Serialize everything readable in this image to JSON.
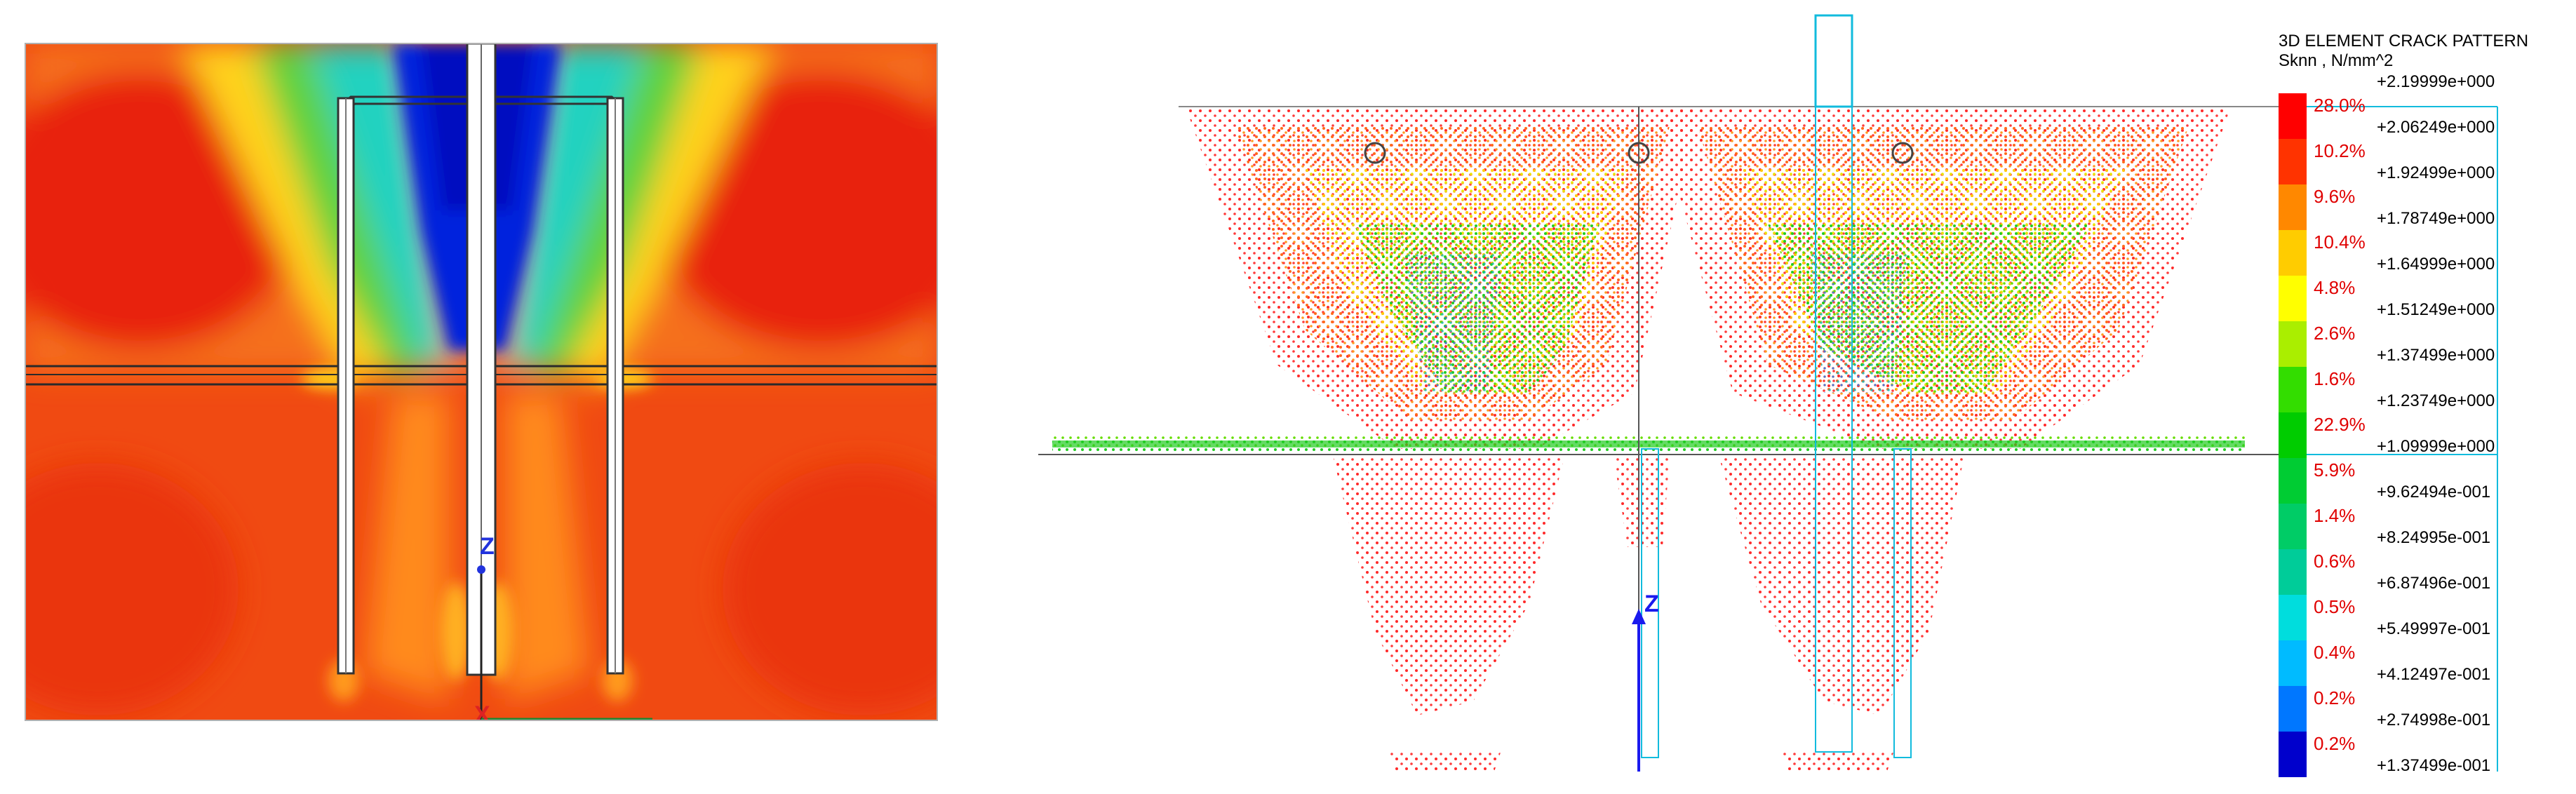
{
  "left_view": {
    "axis_z_label": "Z",
    "axis_x_label": "X"
  },
  "right_view": {
    "axis_z_label": "Z"
  },
  "legend": {
    "title": "3D ELEMENT CRACK PATTERN",
    "subtitle": "Sknn , N/mm^2",
    "values": [
      "+2.19999e+000",
      "+2.06249e+000",
      "+1.92499e+000",
      "+1.78749e+000",
      "+1.64999e+000",
      "+1.51249e+000",
      "+1.37499e+000",
      "+1.23749e+000",
      "+1.09999e+000",
      "+9.62494e-001",
      "+8.24995e-001",
      "+6.87496e-001",
      "+5.49997e-001",
      "+4.12497e-001",
      "+2.74998e-001",
      "+1.37499e-001"
    ],
    "percents": [
      "28.0%",
      "10.2%",
      "9.6%",
      "10.4%",
      "4.8%",
      "2.6%",
      "1.6%",
      "22.9%",
      "5.9%",
      "1.4%",
      "0.6%",
      "0.5%",
      "0.4%",
      "0.2%",
      "0.2%"
    ],
    "colors": [
      "#ff0000",
      "#ff3300",
      "#ff8800",
      "#ffcc00",
      "#ffff00",
      "#aaee00",
      "#33dd00",
      "#00cc00",
      "#00cc33",
      "#00cc66",
      "#00cc99",
      "#00dddd",
      "#00bbff",
      "#0077ff",
      "#0000cc"
    ]
  }
}
